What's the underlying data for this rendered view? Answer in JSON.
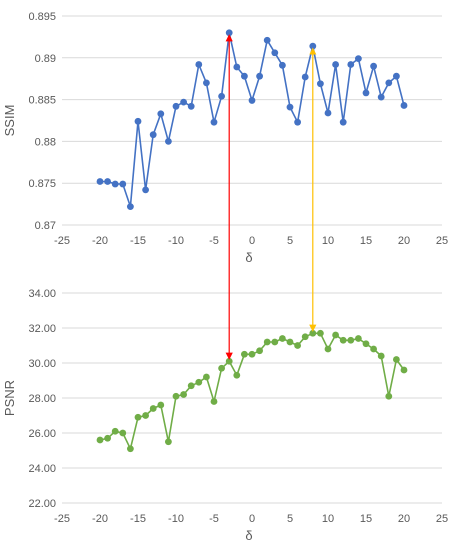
{
  "chart_data": [
    {
      "type": "line",
      "title": "",
      "xlabel": "δ",
      "ylabel": "SSIM",
      "xlim": [
        -25,
        25
      ],
      "ylim": [
        0.87,
        0.895
      ],
      "x_ticks": [
        -25,
        -20,
        -15,
        -10,
        -5,
        0,
        5,
        10,
        15,
        20,
        25
      ],
      "x_tick_labels": [
        "-25",
        "-20",
        "-15",
        "-10",
        "-5",
        "0",
        "5",
        "10",
        "15",
        "20",
        "25"
      ],
      "y_ticks": [
        0.87,
        0.875,
        0.88,
        0.885,
        0.89,
        0.895
      ],
      "y_tick_labels": [
        "0.87",
        "0.875",
        "0.88",
        "0.885",
        "0.89",
        "0.895"
      ],
      "grid": "horizontal",
      "color": "#4472C4",
      "x": [
        -20,
        -19,
        -18,
        -17,
        -16,
        -15,
        -14,
        -13,
        -12,
        -11,
        -10,
        -9,
        -8,
        -7,
        -6,
        -5,
        -4,
        -3,
        -2,
        -1,
        0,
        1,
        2,
        3,
        4,
        5,
        6,
        7,
        8,
        9,
        10,
        11,
        12,
        13,
        14,
        15,
        16,
        17,
        18,
        19,
        20
      ],
      "y": [
        0.8752,
        0.8752,
        0.8749,
        0.8749,
        0.8722,
        0.8824,
        0.8742,
        0.8808,
        0.8833,
        0.88,
        0.8842,
        0.8847,
        0.8842,
        0.8892,
        0.887,
        0.8823,
        0.8854,
        0.893,
        0.8889,
        0.8878,
        0.8849,
        0.8878,
        0.8921,
        0.8906,
        0.8891,
        0.8841,
        0.8823,
        0.8877,
        0.8914,
        0.8869,
        0.8834,
        0.8892,
        0.8823,
        0.8892,
        0.8899,
        0.8858,
        0.889,
        0.8853,
        0.887,
        0.8878,
        0.8843
      ]
    },
    {
      "type": "line",
      "title": "",
      "xlabel": "δ",
      "ylabel": "PSNR",
      "xlim": [
        -25,
        25
      ],
      "ylim": [
        22,
        34
      ],
      "x_ticks": [
        -25,
        -20,
        -15,
        -10,
        -5,
        0,
        5,
        10,
        15,
        20,
        25
      ],
      "x_tick_labels": [
        "-25",
        "-20",
        "-15",
        "-10",
        "-5",
        "0",
        "5",
        "10",
        "15",
        "20",
        "25"
      ],
      "y_ticks": [
        22,
        24,
        26,
        28,
        30,
        32,
        34
      ],
      "y_tick_labels": [
        "22.00",
        "24.00",
        "26.00",
        "28.00",
        "30.00",
        "32.00",
        "34.00"
      ],
      "grid": "horizontal",
      "color": "#70AD47",
      "x": [
        -20,
        -19,
        -18,
        -17,
        -16,
        -15,
        -14,
        -13,
        -12,
        -11,
        -10,
        -9,
        -8,
        -7,
        -6,
        -5,
        -4,
        -3,
        -2,
        -1,
        0,
        1,
        2,
        3,
        4,
        5,
        6,
        7,
        8,
        9,
        10,
        11,
        12,
        13,
        14,
        15,
        16,
        17,
        18,
        19,
        20
      ],
      "y": [
        25.6,
        25.7,
        26.1,
        26.0,
        25.1,
        26.9,
        27.0,
        27.4,
        27.6,
        25.5,
        28.1,
        28.2,
        28.7,
        28.9,
        29.2,
        27.8,
        29.7,
        30.1,
        29.3,
        30.5,
        30.5,
        30.7,
        31.2,
        31.2,
        31.4,
        31.2,
        31.0,
        31.5,
        31.7,
        31.7,
        30.8,
        31.6,
        31.3,
        31.3,
        31.4,
        31.1,
        30.8,
        30.4,
        28.1,
        30.2,
        29.6
      ]
    }
  ],
  "annotations": [
    {
      "name": "red-arrow",
      "x": -3,
      "color": "#FF0000"
    },
    {
      "name": "yellow-arrow",
      "x": 8,
      "color": "#FFC000"
    }
  ]
}
